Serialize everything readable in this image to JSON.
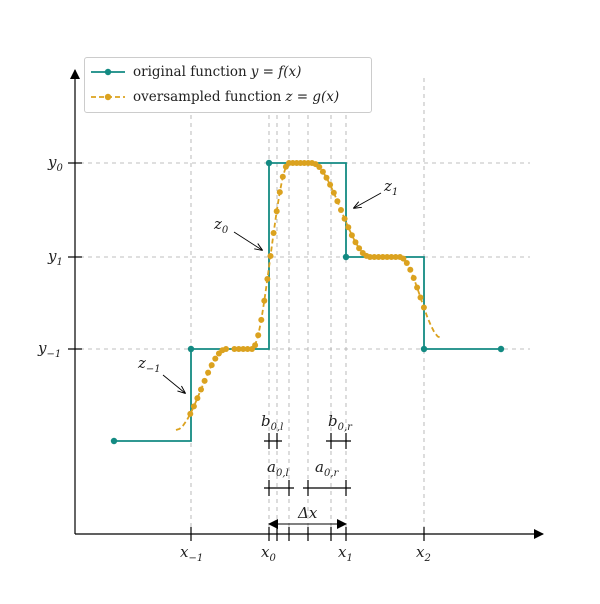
{
  "colors": {
    "original": "#138a82",
    "oversampled": "#dba21f",
    "grid": "#aaaaaa",
    "axis": "#000000",
    "text": "#222222"
  },
  "legend": {
    "original": {
      "text": "original function",
      "math": "y = f(x)"
    },
    "oversampled": {
      "text": "oversampled function",
      "math": "z = g(x)"
    }
  },
  "x_ticks": [
    {
      "base": "x",
      "sub": "−1"
    },
    {
      "base": "x",
      "sub": "0"
    },
    {
      "base": "x",
      "sub": "1"
    },
    {
      "base": "x",
      "sub": "2"
    }
  ],
  "y_ticks": [
    {
      "base": "y",
      "sub": "0"
    },
    {
      "base": "y",
      "sub": "1"
    },
    {
      "base": "y",
      "sub": "−1"
    }
  ],
  "annotations": {
    "z_minus1": {
      "base": "z",
      "sub": "−1"
    },
    "z0": {
      "base": "z",
      "sub": "0"
    },
    "z1": {
      "base": "z",
      "sub": "1"
    },
    "b0l": {
      "base": "b",
      "sub": "0,l"
    },
    "b0r": {
      "base": "b",
      "sub": "0,r"
    },
    "a0l": {
      "base": "a",
      "sub": "0,l"
    },
    "a0r": {
      "base": "a",
      "sub": "0,r"
    },
    "dx": "Δx"
  }
}
